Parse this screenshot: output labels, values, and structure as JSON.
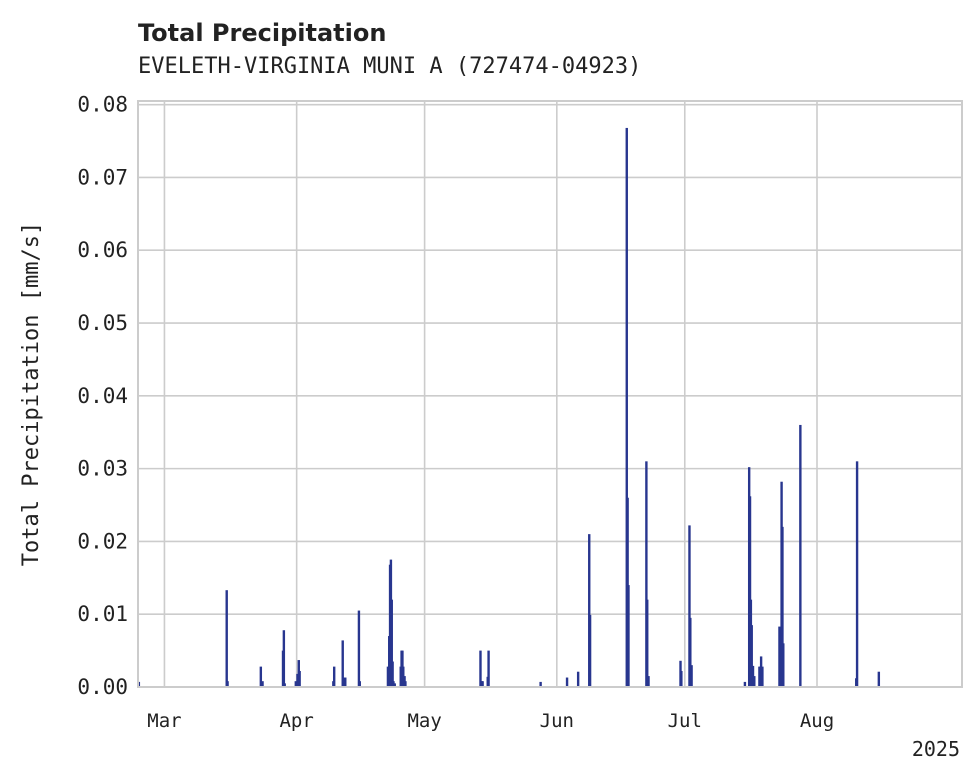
{
  "chart_data": {
    "type": "bar",
    "title": "Total Precipitation",
    "subtitle": "EVELETH-VIRGINIA MUNI A (727474-04923)",
    "ylabel": "Total Precipitation [mm/s]",
    "xlabel": "",
    "ylim": [
      0,
      0.0805
    ],
    "yticks": [
      "0.00",
      "0.01",
      "0.02",
      "0.03",
      "0.04",
      "0.05",
      "0.06",
      "0.07",
      "0.08"
    ],
    "xlim_days": [
      -6.2,
      187
    ],
    "xticks": [
      {
        "label": "Mar",
        "day": 0
      },
      {
        "label": "Apr",
        "day": 31
      },
      {
        "label": "May",
        "day": 61
      },
      {
        "label": "Jun",
        "day": 92
      },
      {
        "label": "Jul",
        "day": 122
      },
      {
        "label": "Aug",
        "day": 153
      }
    ],
    "year_label": "2025",
    "bar_color": "#28368f",
    "series": [
      {
        "name": "Total Precipitation",
        "day_offset_from_mar_1": [
          -6.0,
          14.6,
          14.8,
          22.6,
          23.0,
          27.8,
          28.0,
          28.2,
          30.8,
          31.2,
          31.5,
          31.7,
          39.6,
          39.8,
          41.8,
          42.1,
          42.4,
          45.6,
          45.8,
          52.4,
          52.7,
          52.9,
          53.1,
          53.3,
          53.5,
          53.7,
          54.0,
          55.4,
          55.6,
          55.8,
          56.0,
          56.3,
          56.5,
          74.1,
          74.4,
          74.6,
          75.8,
          76.0,
          88.2,
          94.4,
          97.0,
          99.6,
          99.8,
          108.4,
          108.6,
          108.8,
          113.0,
          113.2,
          113.5,
          121.0,
          121.2,
          123.1,
          123.3,
          123.6,
          136.1,
          137.1,
          137.3,
          137.5,
          137.7,
          138.0,
          138.3,
          139.5,
          139.7,
          139.9,
          140.2,
          144.2,
          144.4,
          144.7,
          144.9,
          145.1,
          149.1,
          162.2,
          162.4,
          167.5
        ],
        "values": [
          0.0007,
          0.0133,
          0.0008,
          0.0028,
          0.0008,
          0.005,
          0.0078,
          0.0005,
          0.0008,
          0.0018,
          0.0037,
          0.0022,
          0.0008,
          0.0028,
          0.0064,
          0.0013,
          0.0013,
          0.0105,
          0.0008,
          0.0028,
          0.007,
          0.0168,
          0.0175,
          0.012,
          0.0035,
          0.0008,
          0.0005,
          0.0028,
          0.005,
          0.005,
          0.0028,
          0.0015,
          0.0008,
          0.005,
          0.0008,
          0.0008,
          0.0014,
          0.005,
          0.0007,
          0.0013,
          0.0021,
          0.021,
          0.0099,
          0.0768,
          0.026,
          0.014,
          0.031,
          0.012,
          0.0015,
          0.0036,
          0.0022,
          0.0222,
          0.0095,
          0.003,
          0.0007,
          0.0302,
          0.0262,
          0.012,
          0.0085,
          0.0029,
          0.0015,
          0.0028,
          0.0028,
          0.0042,
          0.0028,
          0.0083,
          0.0065,
          0.0282,
          0.022,
          0.006,
          0.036,
          0.0012,
          0.031,
          0.0021
        ]
      }
    ]
  }
}
